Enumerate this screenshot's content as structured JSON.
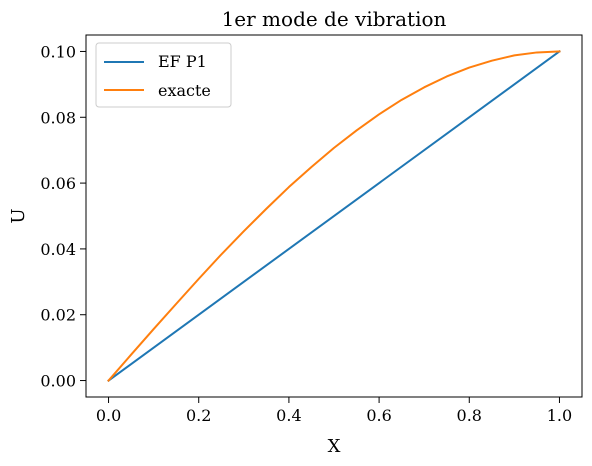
{
  "chart_data": {
    "type": "line",
    "title": "1er mode de vibration",
    "xlabel": "X",
    "ylabel": "U",
    "xlim": [
      -0.05,
      1.05
    ],
    "ylim": [
      -0.005,
      0.105
    ],
    "xticks": [
      "0.0",
      "0.2",
      "0.4",
      "0.6",
      "0.8",
      "1.0"
    ],
    "xtick_values": [
      0.0,
      0.2,
      0.4,
      0.6,
      0.8,
      1.0
    ],
    "yticks": [
      "0.00",
      "0.02",
      "0.04",
      "0.06",
      "0.08",
      "0.10"
    ],
    "ytick_values": [
      0.0,
      0.02,
      0.04,
      0.06,
      0.08,
      0.1
    ],
    "grid": false,
    "legend_position": "upper-left",
    "series": [
      {
        "name": "EF P1",
        "color": "#1f77b4",
        "x": [
          0.0,
          1.0
        ],
        "y": [
          0.0,
          0.1
        ]
      },
      {
        "name": "exacte",
        "color": "#ff7f0e",
        "x": [
          0.0,
          0.05,
          0.1,
          0.15,
          0.2,
          0.25,
          0.3,
          0.35,
          0.4,
          0.45,
          0.5,
          0.55,
          0.6,
          0.65,
          0.7,
          0.75,
          0.8,
          0.85,
          0.9,
          0.95,
          1.0
        ],
        "y": [
          0.0,
          0.00785,
          0.01564,
          0.0233,
          0.0309,
          0.0383,
          0.0454,
          0.0522,
          0.0588,
          0.0649,
          0.0707,
          0.076,
          0.0809,
          0.0853,
          0.0891,
          0.0924,
          0.0951,
          0.0972,
          0.0988,
          0.0997,
          0.1
        ]
      }
    ]
  }
}
